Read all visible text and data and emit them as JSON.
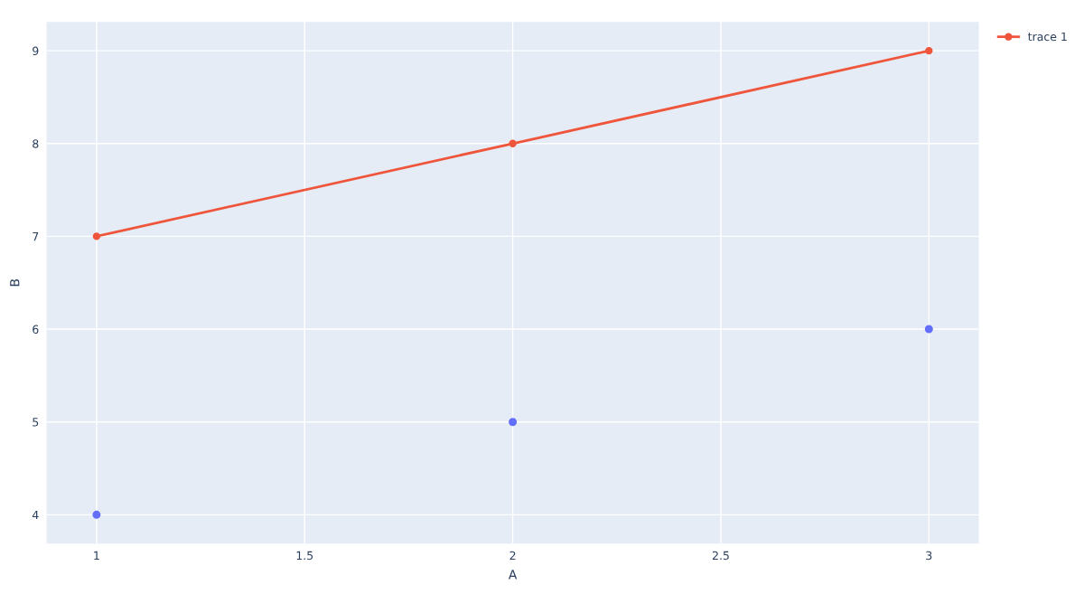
{
  "chart_data": {
    "type": "line",
    "xlabel": "A",
    "ylabel": "B",
    "series": [
      {
        "type": "scatter",
        "color": "#636efa",
        "x": [
          1,
          2,
          3
        ],
        "values": [
          4,
          5,
          6
        ],
        "marker": "circle"
      },
      {
        "name": "trace 1",
        "color": "#ef553b",
        "x": [
          1,
          2,
          3
        ],
        "values": [
          7,
          8,
          9
        ],
        "marker": "circle",
        "line_style": "solid"
      }
    ],
    "xlim": [
      0.88,
      3.12
    ],
    "xticks": [
      1,
      1.5,
      2,
      2.5,
      3
    ],
    "ylim": [
      3.69,
      9.31
    ],
    "yticks": [
      4,
      5,
      6,
      7,
      8,
      9
    ],
    "grid": true,
    "legend": "top right"
  }
}
